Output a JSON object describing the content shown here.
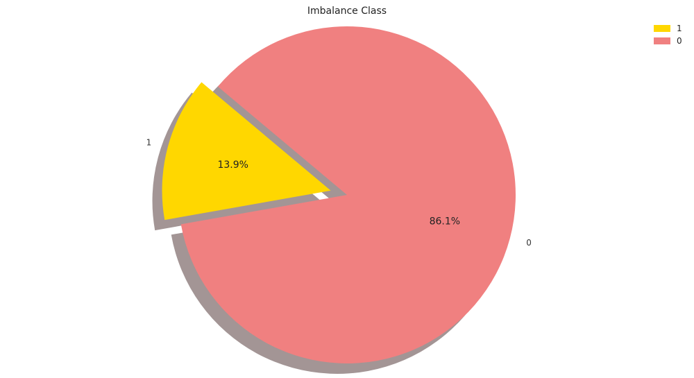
{
  "chart_data": {
    "type": "pie",
    "title": "Imbalance Class",
    "start_angle_deg": 140,
    "explode": [
      0.1,
      0
    ],
    "shadow": true,
    "slices": [
      {
        "label": "1",
        "value": 13.9,
        "pct_label": "13.9%",
        "color": "#FFD700"
      },
      {
        "label": "0",
        "value": 86.1,
        "pct_label": "86.1%",
        "color": "#F08080"
      }
    ],
    "legend": {
      "position": "top-right",
      "entries": [
        "1",
        "0"
      ]
    },
    "shadow_color": "#a39595"
  }
}
